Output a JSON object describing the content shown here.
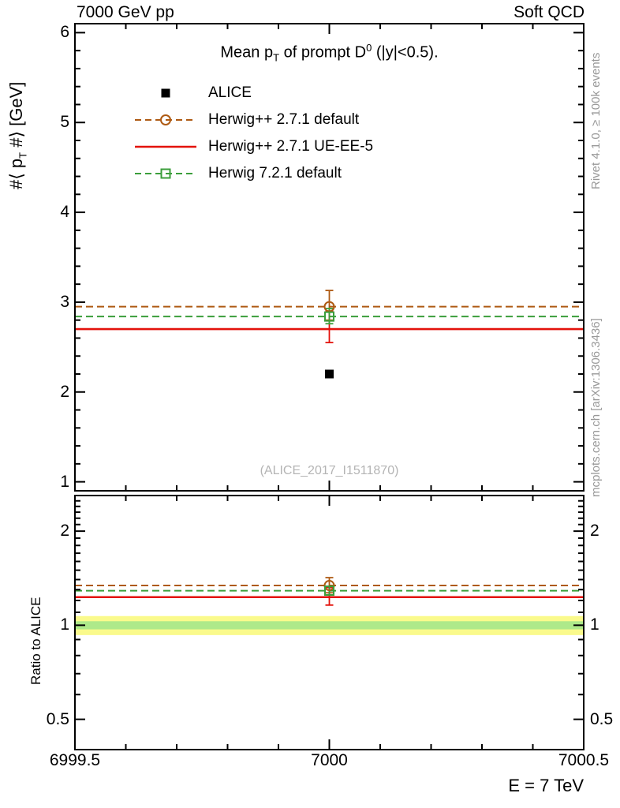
{
  "header": {
    "left": "7000 GeV pp",
    "right": "Soft QCD"
  },
  "title": {
    "pre": "Mean p",
    "sub": "T",
    "mid": " of prompt D",
    "sup": "0",
    "post": " (|y|<0.5)."
  },
  "axis_labels": {
    "main_y": {
      "pre": "#⟨ p",
      "sub": "T",
      "post": " #⟩ [GeV]"
    },
    "ratio_y": "Ratio to ALICE",
    "x": "E = 7 TeV"
  },
  "side_notes": {
    "right_top": "Rivet 4.1.0, ≥ 100k events",
    "right_bottom": "mcplots.cern.ch [arXiv:1306.3436]"
  },
  "watermark": "(ALICE_2017_I1511870)",
  "legend": {
    "items": [
      {
        "label": "ALICE",
        "series": 0
      },
      {
        "label": "Herwig++ 2.7.1 default",
        "series": 1
      },
      {
        "label": "Herwig++ 2.7.1 UE-EE-5",
        "series": 2
      },
      {
        "label": "Herwig 7.2.1 default",
        "series": 3
      }
    ]
  },
  "chart_data": [
    {
      "type": "line",
      "panel": "main",
      "title": "Mean pT of prompt D0 (|y|<0.5).",
      "xlabel": "E = 7 TeV",
      "ylabel": "#< pT #> [GeV]",
      "xlim": [
        6999.5,
        7000.5
      ],
      "ylim": [
        0.9,
        6.1
      ],
      "yscale": "linear",
      "xticks": [
        6999.5,
        7000,
        7000.5
      ],
      "xtick_labels": [
        "6999.5",
        "7000",
        "7000.5"
      ],
      "yticks": [
        1,
        2,
        3,
        4,
        5,
        6
      ],
      "ytick_labels": [
        "1",
        "2",
        "3",
        "4",
        "5",
        "6"
      ],
      "series": [
        {
          "name": "ALICE",
          "color": "#000000",
          "line": null,
          "marker": "filled-square",
          "points": [
            {
              "x": 7000,
              "y": 2.2
            }
          ]
        },
        {
          "name": "Herwig++ 2.7.1 default",
          "color": "#ae5a13",
          "line": "dashed",
          "line_y": 2.95,
          "marker": "open-circle",
          "points": [
            {
              "x": 7000,
              "y": 2.95,
              "err": [
                2.8,
                3.13
              ]
            }
          ]
        },
        {
          "name": "Herwig++ 2.7.1 UE-EE-5",
          "color": "#e3120b",
          "line": "solid",
          "line_y": 2.7,
          "marker": "none",
          "points": [
            {
              "x": 7000,
              "y": 2.7,
              "err": [
                2.55,
                2.9
              ]
            }
          ]
        },
        {
          "name": "Herwig 7.2.1 default",
          "color": "#3b9e3b",
          "line": "dashed",
          "line_y": 2.84,
          "marker": "open-square",
          "points": [
            {
              "x": 7000,
              "y": 2.84,
              "err": [
                2.76,
                2.93
              ]
            }
          ]
        }
      ]
    },
    {
      "type": "line",
      "panel": "ratio",
      "ylabel": "Ratio to ALICE",
      "xlim": [
        6999.5,
        7000.5
      ],
      "ylim": [
        0.4,
        2.6
      ],
      "yscale": "log",
      "yticks": [
        0.5,
        1,
        2
      ],
      "ytick_labels": [
        "0.5",
        "1",
        "2"
      ],
      "bands": [
        {
          "color": "#fafa8c",
          "lo": 0.93,
          "hi": 1.07
        },
        {
          "color": "#aee98a",
          "lo": 0.97,
          "hi": 1.03
        }
      ],
      "series": [
        {
          "name": "Herwig++ 2.7.1 default",
          "color": "#ae5a13",
          "line": "dashed",
          "line_y": 1.34,
          "marker": "open-circle",
          "points": [
            {
              "x": 7000,
              "y": 1.34,
              "err": [
                1.27,
                1.42
              ]
            }
          ]
        },
        {
          "name": "Herwig++ 2.7.1 UE-EE-5",
          "color": "#e3120b",
          "line": "solid",
          "line_y": 1.23,
          "marker": "none",
          "points": [
            {
              "x": 7000,
              "y": 1.23,
              "err": [
                1.16,
                1.32
              ]
            }
          ]
        },
        {
          "name": "Herwig 7.2.1 default",
          "color": "#3b9e3b",
          "line": "dashed",
          "line_y": 1.29,
          "marker": "open-square",
          "points": [
            {
              "x": 7000,
              "y": 1.29,
              "err": [
                1.25,
                1.33
              ]
            }
          ]
        }
      ]
    }
  ]
}
